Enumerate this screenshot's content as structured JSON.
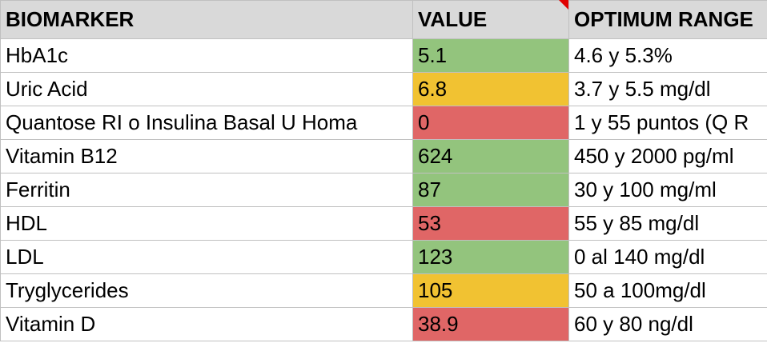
{
  "table": {
    "header": [
      "BIOMARKER",
      "VALUE",
      "OPTIMUM RANGE"
    ],
    "rows": [
      [
        "HbA1c",
        "5.1",
        "4.6 y 5.3%"
      ],
      [
        "Uric Acid",
        "6.8",
        "3.7 y 5.5 mg/dl"
      ],
      [
        "Quantose RI o Insulina Basal U Homa",
        "0",
        "1 y 55 puntos (Q R"
      ],
      [
        "Vitamin B12",
        "624",
        "450 y 2000 pg/ml"
      ],
      [
        "Ferritin",
        "87",
        "30 y 100 mg/ml"
      ],
      [
        "HDL",
        "53",
        "55 y 85 mg/dl"
      ],
      [
        "LDL",
        "123",
        "0 al 140 mg/dl"
      ],
      [
        "Tryglycerides",
        "105",
        "50 a 100mg/dl"
      ],
      [
        "Vitamin D",
        "38.9",
        "60 y 80 ng/dl"
      ]
    ],
    "value_colors": [
      "#93c47d",
      "#f1c232",
      "#e06666",
      "#93c47d",
      "#93c47d",
      "#e06666",
      "#93c47d",
      "#f1c232",
      "#e06666"
    ]
  }
}
